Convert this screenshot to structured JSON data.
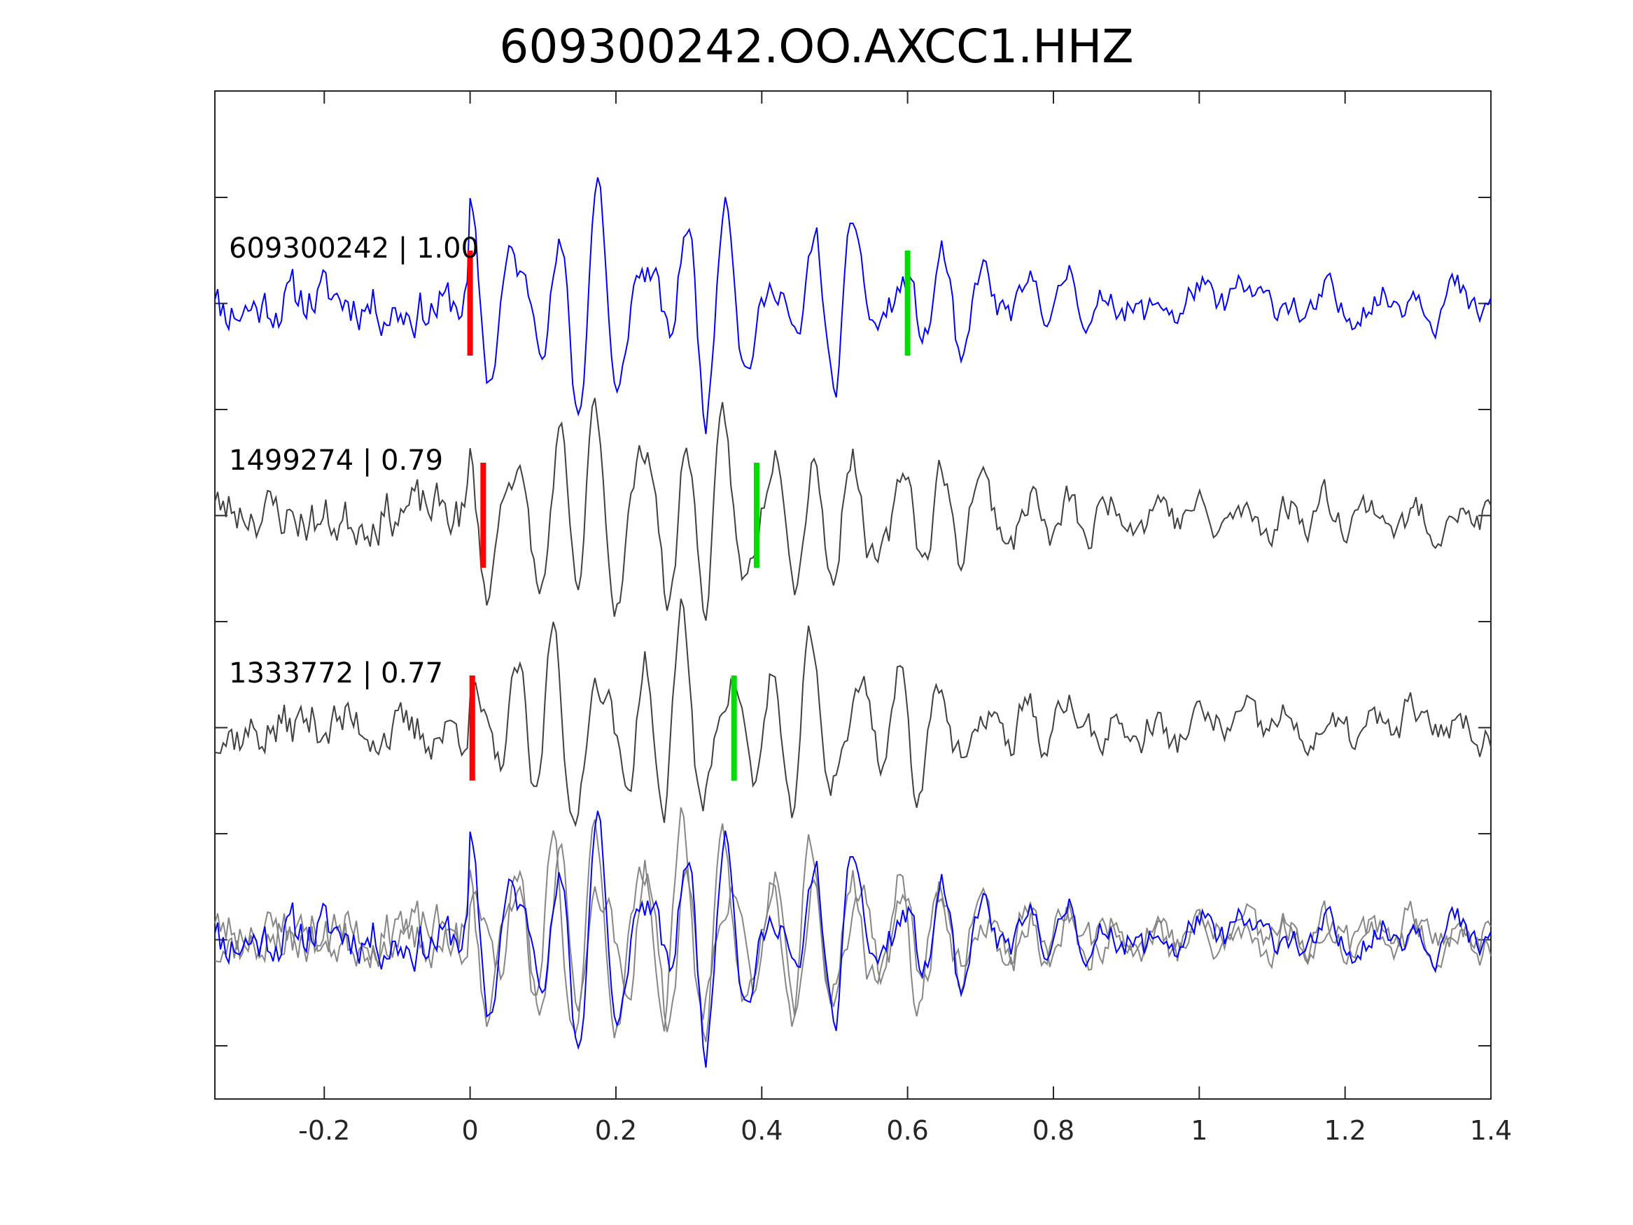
{
  "chart_data": {
    "type": "line",
    "title": "609300242.OO.AXCC1.HHZ",
    "xlabel": "",
    "ylabel": "",
    "xlim": [
      -0.35,
      1.4
    ],
    "x_ticks": [
      -0.2,
      0,
      0.2,
      0.4,
      0.6,
      0.8,
      1,
      1.2,
      1.4
    ],
    "x_tick_labels": [
      "-0.2",
      "0",
      "0.2",
      "0.4",
      "0.6",
      "0.8",
      "1",
      "1.2",
      "1.4"
    ],
    "y_ticks_count": 9,
    "grid": false,
    "series": [
      {
        "label": "609300242 | 1.00",
        "color": "#0000ff",
        "red_marker_x": 0.0,
        "green_marker_x": 0.6,
        "seed": 11,
        "amplitude_scale": 1.0
      },
      {
        "label": "1499274 | 0.79",
        "color": "#404040",
        "red_marker_x": 0.018,
        "green_marker_x": 0.393,
        "seed": 23,
        "amplitude_scale": 1.0
      },
      {
        "label": "1333772 | 0.77",
        "color": "#404040",
        "red_marker_x": 0.003,
        "green_marker_x": 0.362,
        "seed": 37,
        "amplitude_scale": 1.0
      }
    ],
    "overlay": {
      "colors": [
        "#0000ff",
        "#808080",
        "#808080"
      ]
    },
    "marker_colors": {
      "red": "#ff0000",
      "green": "#00dd00"
    }
  }
}
